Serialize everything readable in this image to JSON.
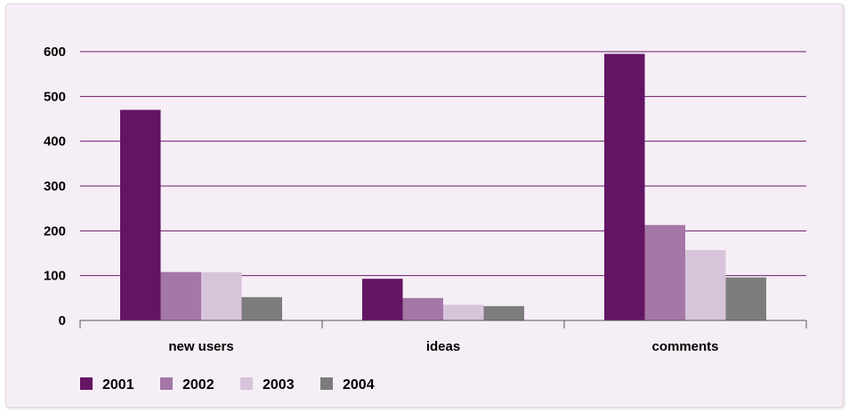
{
  "chart_data": {
    "type": "bar",
    "categories": [
      "new users",
      "ideas",
      "comments"
    ],
    "series": [
      {
        "name": "2001",
        "values": [
          470,
          93,
          595
        ],
        "color": "#641464"
      },
      {
        "name": "2002",
        "values": [
          108,
          50,
          213
        ],
        "color": "#a477a6"
      },
      {
        "name": "2003",
        "values": [
          108,
          35,
          157
        ],
        "color": "#d8c4da"
      },
      {
        "name": "2004",
        "values": [
          52,
          32,
          96
        ],
        "color": "#7c7c7c"
      }
    ],
    "y_ticks": [
      "0",
      "100",
      "200",
      "300",
      "400",
      "500",
      "600"
    ],
    "ylim": [
      0,
      600
    ],
    "grid": true,
    "gridline_color": "#6a1b6a",
    "legend_position": "bottom-left"
  }
}
